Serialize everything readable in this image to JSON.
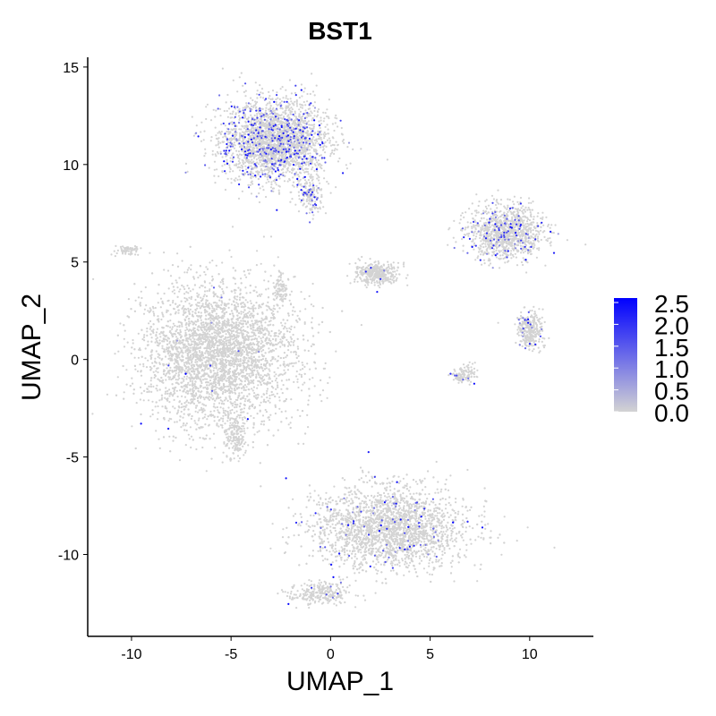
{
  "chart_data": {
    "type": "scatter",
    "title": "BST1",
    "xlabel": "UMAP_1",
    "ylabel": "UMAP_2",
    "xlim": [
      -12.2,
      13.2
    ],
    "ylim": [
      -14.2,
      15.5
    ],
    "x_ticks": [
      -10,
      -5,
      0,
      5,
      10
    ],
    "y_ticks": [
      -10,
      -5,
      0,
      5,
      10,
      15
    ],
    "grid": false,
    "legend": {
      "position": "right",
      "labels": [
        "2.5",
        "2.0",
        "1.5",
        "1.0",
        "0.5",
        "0.0"
      ],
      "min": 0.0,
      "max": 2.5
    },
    "colors": {
      "low": "#d3d3d3",
      "high": "#0000ff",
      "axis": "#000000"
    },
    "clusters": [
      {
        "name": "cluster-top-left",
        "center": [
          -2.8,
          11.2
        ],
        "spread": [
          2.4,
          1.9
        ],
        "n": 2600,
        "expr_rate": 0.12
      },
      {
        "name": "cluster-top-left-tail",
        "center": [
          -1.0,
          8.4
        ],
        "spread": [
          0.5,
          0.9
        ],
        "n": 160,
        "expr_rate": 0.15
      },
      {
        "name": "cluster-large-left",
        "center": [
          -5.6,
          0.3
        ],
        "spread": [
          3.4,
          3.3
        ],
        "n": 4200,
        "expr_rate": 0.004
      },
      {
        "name": "cluster-bottom",
        "center": [
          3.0,
          -8.7
        ],
        "spread": [
          3.5,
          1.9
        ],
        "n": 2900,
        "expr_rate": 0.03
      },
      {
        "name": "cluster-bottom-tail",
        "center": [
          -0.5,
          -12.0
        ],
        "spread": [
          1.4,
          0.5
        ],
        "n": 260,
        "expr_rate": 0.02
      },
      {
        "name": "cluster-right-upper",
        "center": [
          8.8,
          6.5
        ],
        "spread": [
          1.7,
          1.2
        ],
        "n": 1100,
        "expr_rate": 0.09
      },
      {
        "name": "cluster-right-mid",
        "center": [
          10.0,
          1.5
        ],
        "spread": [
          0.6,
          0.9
        ],
        "n": 300,
        "expr_rate": 0.06
      },
      {
        "name": "cluster-middle",
        "center": [
          2.3,
          4.4
        ],
        "spread": [
          1.0,
          0.5
        ],
        "n": 380,
        "expr_rate": 0.02
      },
      {
        "name": "cluster-right-small",
        "center": [
          6.7,
          -0.8
        ],
        "spread": [
          0.5,
          0.4
        ],
        "n": 120,
        "expr_rate": 0.05
      },
      {
        "name": "cluster-far-left",
        "center": [
          -10.2,
          5.6
        ],
        "spread": [
          0.7,
          0.2
        ],
        "n": 60,
        "expr_rate": 0.0
      },
      {
        "name": "cluster-left-small",
        "center": [
          -4.8,
          -3.9
        ],
        "spread": [
          0.5,
          1.1
        ],
        "n": 180,
        "expr_rate": 0.01
      },
      {
        "name": "cluster-center-small",
        "center": [
          -2.5,
          3.6
        ],
        "spread": [
          0.3,
          0.8
        ],
        "n": 90,
        "expr_rate": 0.0
      }
    ]
  }
}
